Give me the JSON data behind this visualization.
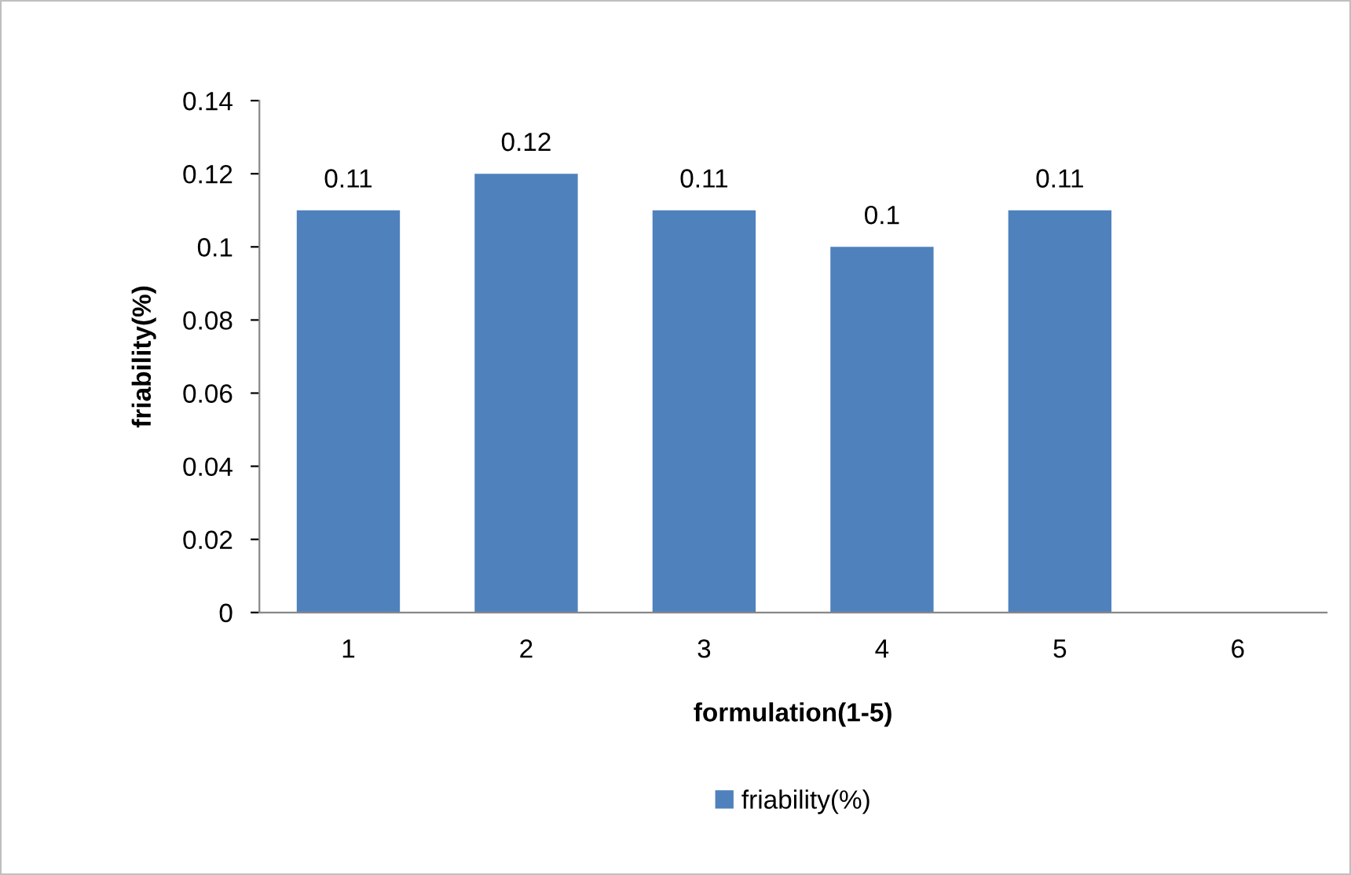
{
  "chart_data": {
    "type": "bar",
    "xlabel": "formulation(1-5)",
    "ylabel": "friability(%)",
    "categories": [
      "1",
      "2",
      "3",
      "4",
      "5",
      "6"
    ],
    "series": [
      {
        "name": "friability(%)",
        "color": "#4f81bd",
        "values": [
          0.11,
          0.12,
          0.11,
          0.1,
          0.11,
          null
        ]
      }
    ],
    "ylim": [
      0,
      0.14
    ],
    "yticks": [
      0,
      0.02,
      0.04,
      0.06,
      0.08,
      0.1,
      0.12,
      0.14
    ],
    "data_labels": true,
    "grid": false,
    "legend": "bottom"
  }
}
